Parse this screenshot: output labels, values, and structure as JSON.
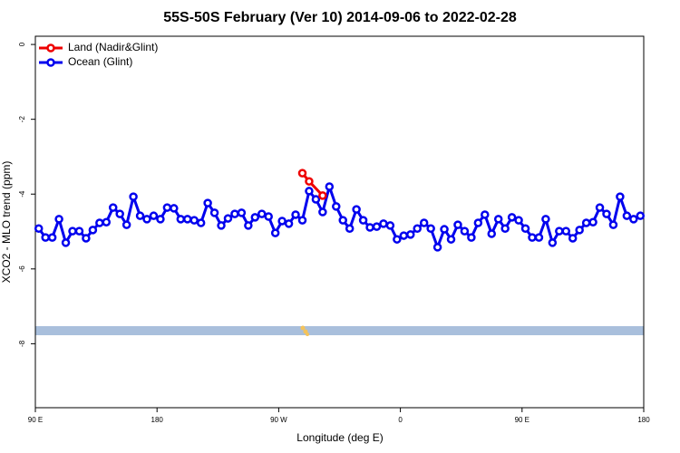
{
  "chart_data": {
    "type": "line",
    "title": "55S-50S February (Ver 10)   2014-09-06 to 2022-02-28",
    "x_label": "Longitude (deg E)",
    "y_label": "XCO2 - MLO trend (ppm)",
    "xlim": [
      90,
      540
    ],
    "ylim": [
      -9.71,
      0.22
    ],
    "xticks": [
      {
        "value": 90,
        "label": "90 E"
      },
      180,
      {
        "value": 270,
        "label": "90 W"
      },
      {
        "value": 360,
        "label": "0"
      },
      {
        "value": 450,
        "label": "90 E"
      },
      {
        "value": 540,
        "label": "180"
      }
    ],
    "yticks": [
      0,
      -2,
      -4,
      -6,
      -8
    ],
    "legend": "top-left",
    "series": [
      {
        "name": "Land (Nadir&Glint)",
        "color": "#ee0000",
        "x": [
          287.5,
          292.5,
          302.5
        ],
        "values": [
          -3.44,
          -3.66,
          -4.04
        ]
      },
      {
        "name": "Ocean (Glint)",
        "color": "#0000ee",
        "x": [
          92.5,
          97.5,
          102.5,
          107.5,
          112.5,
          117.5,
          122.5,
          127.5,
          132.5,
          137.5,
          142.5,
          147.5,
          152.5,
          157.5,
          162.5,
          167.5,
          172.5,
          177.5,
          182.5,
          187.5,
          192.5,
          197.5,
          202.5,
          207.5,
          212.5,
          217.5,
          222.5,
          227.5,
          232.5,
          237.5,
          242.5,
          247.5,
          252.5,
          257.5,
          262.5,
          267.5,
          272.5,
          277.5,
          282.5,
          287.5,
          292.5,
          297.5,
          302.5,
          307.5,
          312.5,
          317.5,
          322.5,
          327.5,
          332.5,
          337.5,
          342.5,
          347.5,
          352.5,
          357.5,
          362.5,
          367.5,
          372.5,
          377.5,
          382.5,
          387.5,
          392.5,
          397.5,
          402.5,
          407.5,
          412.5,
          417.5,
          422.5,
          427.5,
          432.5,
          437.5,
          442.5,
          447.5,
          452.5,
          457.5,
          462.5,
          467.5,
          472.5,
          477.5,
          482.5,
          487.5,
          492.5,
          497.5,
          502.5,
          507.5,
          512.5,
          517.5,
          522.5,
          527.5,
          532.5,
          537.5
        ],
        "values": [
          -4.92,
          -5.16,
          -5.16,
          -4.67,
          -5.3,
          -4.99,
          -4.99,
          -5.18,
          -4.96,
          -4.77,
          -4.75,
          -4.36,
          -4.53,
          -4.82,
          -4.07,
          -4.58,
          -4.67,
          -4.58,
          -4.67,
          -4.36,
          -4.38,
          -4.67,
          -4.67,
          -4.7,
          -4.77,
          -4.24,
          -4.5,
          -4.84,
          -4.65,
          -4.53,
          -4.5,
          -4.84,
          -4.62,
          -4.53,
          -4.6,
          -5.04,
          -4.72,
          -4.79,
          -4.55,
          -4.7,
          -3.92,
          -4.14,
          -4.48,
          -3.8,
          -4.33,
          -4.7,
          -4.92,
          -4.41,
          -4.7,
          -4.89,
          -4.87,
          -4.79,
          -4.84,
          -5.21,
          -5.11,
          -5.08,
          -4.92,
          -4.77,
          -4.92,
          -5.42,
          -4.94,
          -5.21,
          -4.82,
          -4.99,
          -5.16,
          -4.77,
          -4.55,
          -5.06,
          -4.67,
          -4.92,
          -4.62,
          -4.7,
          -4.92,
          -5.16,
          -5.16,
          -4.67,
          -5.3,
          -4.99,
          -4.99,
          -5.18,
          -4.96,
          -4.77,
          -4.75,
          -4.36,
          -4.53,
          -4.82,
          -4.07,
          -4.58,
          -4.67,
          -4.58
        ]
      }
    ]
  }
}
